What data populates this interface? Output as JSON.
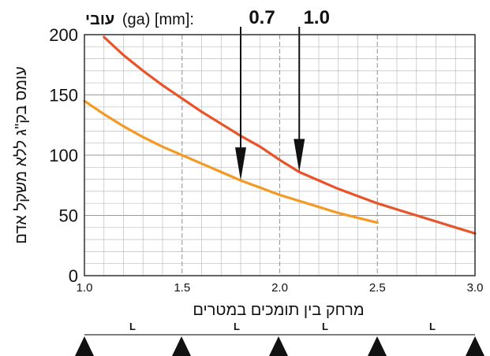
{
  "header": {
    "thickness_label_bold": "עובי",
    "thickness_label_rest": "(ga) [mm]:",
    "marker_labels": [
      "0.7",
      "1.0"
    ]
  },
  "axes": {
    "ylabel": "עומס בק\"ג ללא משקל אדם",
    "xlabel": "מרחק בין תומכים במטרים"
  },
  "span_label": "L",
  "colors": {
    "thickness_1_0": "#e8542a",
    "thickness_0_7": "#f39a24",
    "grid_minor": "#bdbdbd",
    "grid_major": "#9a9a9a"
  },
  "chart_data": {
    "type": "line",
    "xlim": [
      1.0,
      3.0
    ],
    "ylim": [
      0,
      200
    ],
    "x_ticks": [
      "1.0",
      "1.5",
      "2.0",
      "2.5",
      "3.0"
    ],
    "y_ticks": [
      "0",
      "50",
      "100",
      "150",
      "200"
    ],
    "series": [
      {
        "name": "1.0",
        "color": "#e8542a",
        "points": [
          [
            1.1,
            198
          ],
          [
            1.2,
            183
          ],
          [
            1.3,
            170
          ],
          [
            1.4,
            158
          ],
          [
            1.5,
            147
          ],
          [
            1.6,
            136
          ],
          [
            1.7,
            126
          ],
          [
            1.8,
            116
          ],
          [
            1.9,
            107
          ],
          [
            2.0,
            96
          ],
          [
            2.1,
            86
          ],
          [
            2.2,
            79
          ],
          [
            2.3,
            72
          ],
          [
            2.4,
            66
          ],
          [
            2.5,
            60
          ],
          [
            2.6,
            55
          ],
          [
            2.7,
            50
          ],
          [
            2.8,
            45
          ],
          [
            2.9,
            40
          ],
          [
            3.0,
            35
          ]
        ]
      },
      {
        "name": "0.7",
        "color": "#f39a24",
        "points": [
          [
            1.0,
            145
          ],
          [
            1.1,
            134
          ],
          [
            1.2,
            124
          ],
          [
            1.3,
            115
          ],
          [
            1.4,
            107
          ],
          [
            1.5,
            100
          ],
          [
            1.6,
            93
          ],
          [
            1.7,
            86
          ],
          [
            1.8,
            79
          ],
          [
            1.9,
            73
          ],
          [
            2.0,
            67
          ],
          [
            2.1,
            62
          ],
          [
            2.2,
            57
          ],
          [
            2.3,
            52
          ],
          [
            2.4,
            48
          ],
          [
            2.5,
            44
          ]
        ]
      }
    ],
    "markers": [
      {
        "label": "0.7",
        "x": 1.8,
        "y_tip": 79
      },
      {
        "label": "1.0",
        "x": 2.1,
        "y_tip": 86
      }
    ]
  }
}
